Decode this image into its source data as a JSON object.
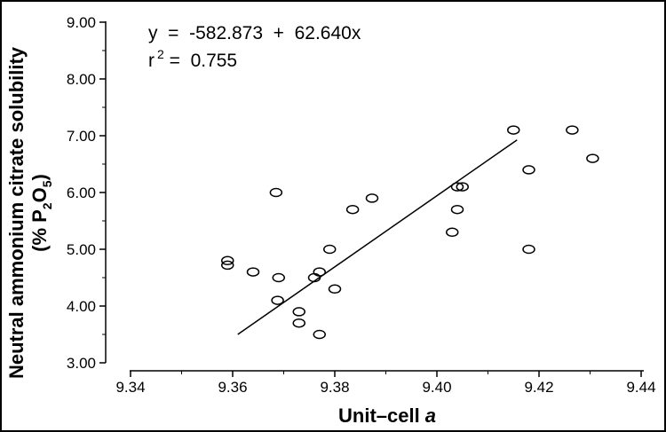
{
  "chart_data": {
    "type": "scatter",
    "xlabel": "Unit–cell",
    "xlabel_var": "a",
    "ylabel_line1": "Neutral ammonium citrate solubility",
    "ylabel_line2": "(% P",
    "ylabel_sub1": "2",
    "ylabel_mid": "O",
    "ylabel_sub2": "5",
    "ylabel_end": ")",
    "xlim": [
      9.34,
      9.44
    ],
    "ylim": [
      3.0,
      9.0
    ],
    "x_ticks": [
      9.34,
      9.36,
      9.38,
      9.4,
      9.42,
      9.44
    ],
    "x_tick_labels": [
      "9.34",
      "9.36",
      "9.38",
      "9.40",
      "9.42",
      "9.44"
    ],
    "y_ticks": [
      3,
      4,
      5,
      6,
      7,
      8,
      9
    ],
    "y_tick_labels": [
      "3.00",
      "4.00",
      "5.00",
      "6.00",
      "7.00",
      "8.00",
      "9.00"
    ],
    "equation": "y  =  -582.873  +  62.640x",
    "r2_label": "r",
    "r2_sup": "2",
    "r2_value": " =  0.755",
    "points": [
      {
        "x": 9.359,
        "y": 4.8
      },
      {
        "x": 9.359,
        "y": 4.72
      },
      {
        "x": 9.364,
        "y": 4.6
      },
      {
        "x": 9.3685,
        "y": 6.0
      },
      {
        "x": 9.369,
        "y": 4.5
      },
      {
        "x": 9.3688,
        "y": 4.1
      },
      {
        "x": 9.373,
        "y": 3.9
      },
      {
        "x": 9.373,
        "y": 3.7
      },
      {
        "x": 9.376,
        "y": 4.5
      },
      {
        "x": 9.377,
        "y": 4.6
      },
      {
        "x": 9.377,
        "y": 3.5
      },
      {
        "x": 9.379,
        "y": 5.0
      },
      {
        "x": 9.38,
        "y": 4.3
      },
      {
        "x": 9.3835,
        "y": 5.7
      },
      {
        "x": 9.3873,
        "y": 5.9
      },
      {
        "x": 9.403,
        "y": 5.3
      },
      {
        "x": 9.404,
        "y": 5.7
      },
      {
        "x": 9.404,
        "y": 6.1
      },
      {
        "x": 9.405,
        "y": 6.1
      },
      {
        "x": 9.415,
        "y": 7.1
      },
      {
        "x": 9.418,
        "y": 6.4
      },
      {
        "x": 9.418,
        "y": 5.0
      },
      {
        "x": 9.4265,
        "y": 7.1
      },
      {
        "x": 9.4305,
        "y": 6.6
      }
    ],
    "fit_line": {
      "x_start": 9.361,
      "x_end": 9.4157
    },
    "grid": false
  }
}
